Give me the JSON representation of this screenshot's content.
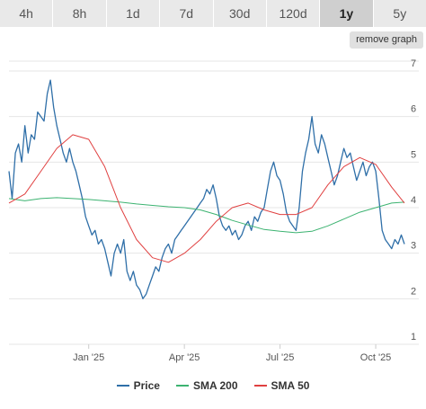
{
  "tabs": [
    {
      "label": "4h",
      "active": false
    },
    {
      "label": "8h",
      "active": false
    },
    {
      "label": "1d",
      "active": false
    },
    {
      "label": "7d",
      "active": false
    },
    {
      "label": "30d",
      "active": false
    },
    {
      "label": "120d",
      "active": false
    },
    {
      "label": "1y",
      "active": true
    },
    {
      "label": "5y",
      "active": false
    }
  ],
  "remove_label": "remove graph",
  "chart_data": {
    "type": "line",
    "y_ticks": [
      1,
      2,
      3,
      4,
      5,
      6,
      7
    ],
    "ylim": [
      1,
      7
    ],
    "y_axis_position": "right",
    "x_ticks": [
      {
        "label": "Jan '25",
        "x": 22.5
      },
      {
        "label": "Apr '25",
        "x": 25.5
      },
      {
        "label": "Jul '25",
        "x": 28.5
      },
      {
        "label": "Oct '25",
        "x": 31.5
      }
    ],
    "xlim": [
      20.0,
      32.4
    ],
    "x_unit": "months",
    "grid": "horizontal",
    "legend_position": "bottom-center",
    "series": [
      {
        "name": "Price",
        "color": "#2f6fa8",
        "x": [
          20.0,
          20.1,
          20.2,
          20.3,
          20.4,
          20.5,
          20.6,
          20.7,
          20.8,
          20.9,
          21.0,
          21.1,
          21.2,
          21.3,
          21.4,
          21.5,
          21.6,
          21.7,
          21.8,
          21.9,
          22.0,
          22.1,
          22.2,
          22.3,
          22.4,
          22.5,
          22.6,
          22.7,
          22.8,
          22.9,
          23.0,
          23.1,
          23.2,
          23.3,
          23.4,
          23.5,
          23.6,
          23.7,
          23.8,
          23.9,
          24.0,
          24.1,
          24.2,
          24.3,
          24.4,
          24.5,
          24.6,
          24.7,
          24.8,
          24.9,
          25.0,
          25.1,
          25.2,
          25.3,
          25.4,
          25.5,
          25.6,
          25.7,
          25.8,
          25.9,
          26.0,
          26.1,
          26.2,
          26.3,
          26.4,
          26.5,
          26.6,
          26.7,
          26.8,
          26.9,
          27.0,
          27.1,
          27.2,
          27.3,
          27.4,
          27.5,
          27.6,
          27.7,
          27.8,
          27.9,
          28.0,
          28.1,
          28.2,
          28.3,
          28.4,
          28.5,
          28.6,
          28.7,
          28.8,
          28.9,
          29.0,
          29.1,
          29.2,
          29.3,
          29.4,
          29.5,
          29.6,
          29.7,
          29.8,
          29.9,
          30.0,
          30.1,
          30.2,
          30.3,
          30.4,
          30.5,
          30.6,
          30.7,
          30.8,
          30.9,
          31.0,
          31.1,
          31.2,
          31.3,
          31.4,
          31.5,
          31.6,
          31.7,
          31.8,
          31.9,
          32.0,
          32.1,
          32.2,
          32.3,
          32.4
        ],
        "values": [
          4.8,
          4.2,
          5.2,
          5.4,
          5.0,
          5.8,
          5.2,
          5.6,
          5.5,
          6.1,
          6.0,
          5.9,
          6.5,
          6.8,
          6.2,
          5.8,
          5.5,
          5.2,
          5.0,
          5.3,
          5.0,
          4.8,
          4.5,
          4.2,
          3.8,
          3.6,
          3.4,
          3.5,
          3.2,
          3.3,
          3.1,
          2.8,
          2.5,
          3.0,
          3.2,
          3.0,
          3.3,
          2.6,
          2.4,
          2.6,
          2.3,
          2.2,
          2.0,
          2.1,
          2.3,
          2.5,
          2.7,
          2.6,
          2.9,
          3.1,
          3.2,
          3.0,
          3.3,
          3.4,
          3.5,
          3.6,
          3.7,
          3.8,
          3.9,
          4.0,
          4.1,
          4.2,
          4.4,
          4.3,
          4.5,
          4.2,
          3.8,
          3.6,
          3.5,
          3.6,
          3.4,
          3.5,
          3.3,
          3.4,
          3.6,
          3.7,
          3.5,
          3.8,
          3.7,
          3.9,
          4.0,
          4.4,
          4.8,
          5.0,
          4.7,
          4.6,
          4.3,
          3.9,
          3.7,
          3.6,
          3.5,
          4.0,
          4.8,
          5.2,
          5.5,
          6.0,
          5.4,
          5.2,
          5.6,
          5.4,
          5.1,
          4.8,
          4.5,
          4.7,
          5.0,
          5.3,
          5.1,
          5.2,
          4.9,
          4.6,
          4.8,
          5.0,
          4.7,
          4.9,
          5.0,
          4.8,
          4.2,
          3.5,
          3.3,
          3.2,
          3.1,
          3.3,
          3.2,
          3.4,
          3.2
        ]
      },
      {
        "name": "SMA 200",
        "color": "#3cb371",
        "x": [
          20.0,
          20.5,
          21.0,
          21.5,
          22.0,
          22.5,
          23.0,
          23.5,
          24.0,
          24.5,
          25.0,
          25.5,
          26.0,
          26.5,
          27.0,
          27.5,
          28.0,
          28.5,
          29.0,
          29.5,
          30.0,
          30.5,
          31.0,
          31.5,
          32.0,
          32.4
        ],
        "values": [
          4.2,
          4.15,
          4.2,
          4.22,
          4.2,
          4.18,
          4.15,
          4.12,
          4.08,
          4.05,
          4.02,
          4.0,
          3.95,
          3.85,
          3.72,
          3.62,
          3.52,
          3.48,
          3.45,
          3.48,
          3.6,
          3.75,
          3.9,
          4.0,
          4.1,
          4.12
        ]
      },
      {
        "name": "SMA 50",
        "color": "#e04040",
        "x": [
          20.0,
          20.5,
          21.0,
          21.5,
          22.0,
          22.5,
          23.0,
          23.5,
          24.0,
          24.5,
          25.0,
          25.5,
          26.0,
          26.5,
          27.0,
          27.5,
          28.0,
          28.5,
          29.0,
          29.5,
          30.0,
          30.5,
          31.0,
          31.5,
          32.0,
          32.4
        ],
        "values": [
          4.1,
          4.3,
          4.8,
          5.3,
          5.6,
          5.5,
          4.9,
          4.0,
          3.3,
          2.9,
          2.8,
          3.0,
          3.3,
          3.7,
          4.0,
          4.1,
          3.95,
          3.85,
          3.85,
          4.0,
          4.5,
          4.9,
          5.1,
          4.95,
          4.45,
          4.1
        ]
      }
    ]
  }
}
